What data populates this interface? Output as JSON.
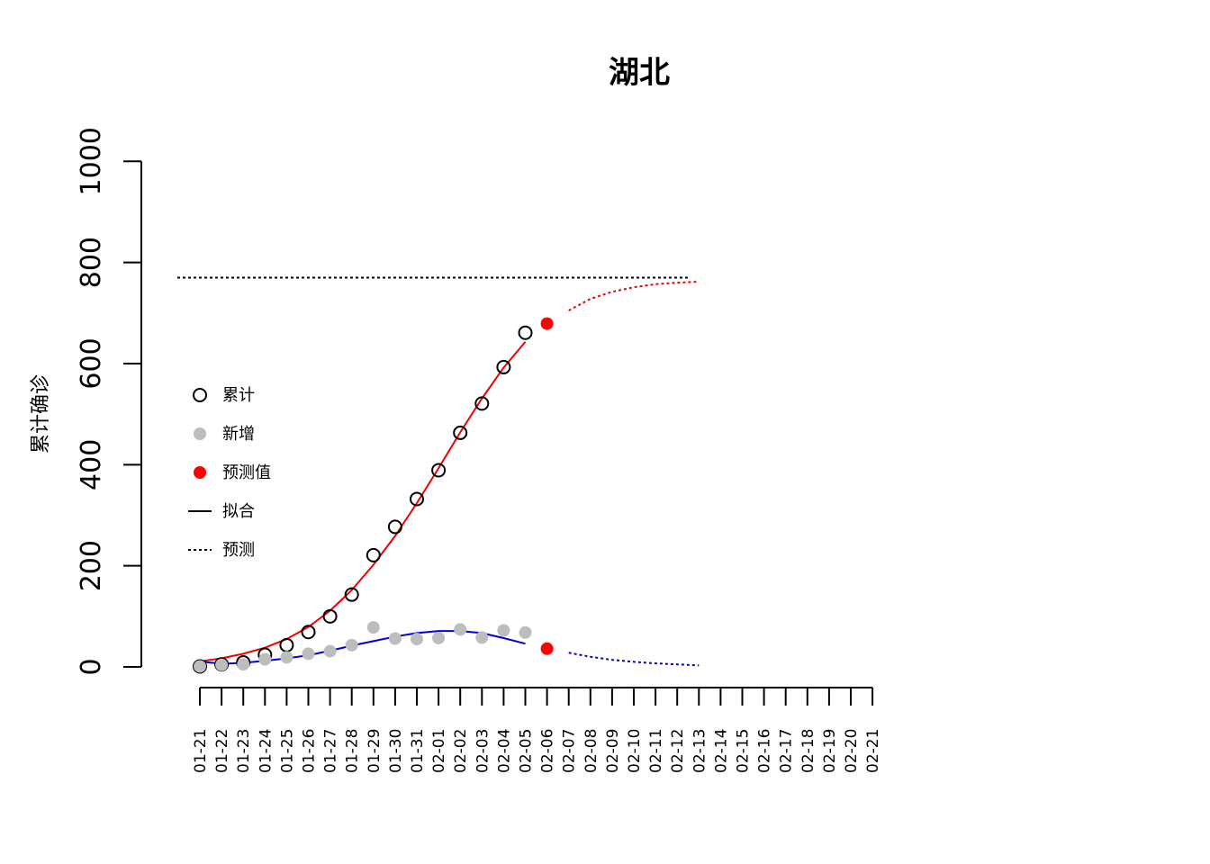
{
  "chart_data": {
    "type": "scatter",
    "title": "湖北",
    "ylabel": "累计确诊",
    "xlabel": "",
    "ylim": [
      0,
      1000
    ],
    "yticks": [
      0,
      200,
      400,
      600,
      800,
      1000
    ],
    "x_dates": [
      "01-21",
      "01-22",
      "01-23",
      "01-24",
      "01-25",
      "01-26",
      "01-27",
      "01-28",
      "01-29",
      "01-30",
      "01-31",
      "02-01",
      "02-02",
      "02-03",
      "02-04",
      "02-05",
      "02-06",
      "02-07",
      "02-08",
      "02-09",
      "02-10",
      "02-11",
      "02-12",
      "02-13",
      "02-14",
      "02-15",
      "02-16",
      "02-17",
      "02-18",
      "02-19",
      "02-20",
      "02-21"
    ],
    "grid": false,
    "legend_position": "left-center",
    "legend": [
      "累计",
      "新增",
      "预测值",
      "拟合",
      "预测"
    ],
    "colors": {
      "cumulative_fit": "#ee0000",
      "new_fit": "#0000dd",
      "predict_point": "#ff0000",
      "new_point": "#bdbdbd",
      "asymptote": "#000000"
    },
    "asymptote": 770,
    "series": [
      {
        "name": "累计",
        "marker": "open-circle",
        "color": "#000000",
        "x": [
          "01-21",
          "01-22",
          "01-23",
          "01-24",
          "01-25",
          "01-26",
          "01-27",
          "01-28",
          "01-29",
          "01-30",
          "01-31",
          "02-01",
          "02-02",
          "02-03",
          "02-04",
          "02-05"
        ],
        "values": [
          1,
          5,
          9,
          24,
          43,
          69,
          100,
          143,
          221,
          277,
          332,
          389,
          463,
          521,
          593,
          661
        ]
      },
      {
        "name": "新增",
        "marker": "filled-circle",
        "color": "#bdbdbd",
        "x": [
          "01-21",
          "01-22",
          "01-23",
          "01-24",
          "01-25",
          "01-26",
          "01-27",
          "01-28",
          "01-29",
          "01-30",
          "01-31",
          "02-01",
          "02-02",
          "02-03",
          "02-04",
          "02-05"
        ],
        "values": [
          1,
          4,
          5,
          15,
          19,
          26,
          31,
          43,
          78,
          56,
          55,
          57,
          74,
          58,
          72,
          68
        ]
      },
      {
        "name": "预测值",
        "marker": "filled-circle",
        "color": "#ff0000",
        "x": [
          "02-06",
          "02-06"
        ],
        "values": [
          679,
          36
        ]
      },
      {
        "name": "拟合",
        "line": "solid",
        "color": "#ee0000",
        "x": [
          "01-21",
          "01-22",
          "01-23",
          "01-24",
          "01-25",
          "01-26",
          "01-27",
          "01-28",
          "01-29",
          "01-30",
          "01-31",
          "02-01",
          "02-02",
          "02-03",
          "02-04",
          "02-05"
        ],
        "values": [
          11,
          17,
          26,
          38,
          55,
          79,
          111,
          152,
          202,
          259,
          324,
          393,
          464,
          531,
          592,
          643
        ]
      },
      {
        "name": "拟合",
        "line": "solid",
        "color": "#0000dd",
        "x": [
          "01-21",
          "01-22",
          "01-23",
          "01-24",
          "01-25",
          "01-26",
          "01-27",
          "01-28",
          "01-29",
          "01-30",
          "01-31",
          "02-01",
          "02-02",
          "02-03",
          "02-04",
          "02-05"
        ],
        "values": [
          11,
          6,
          8,
          12,
          17,
          23,
          32,
          42,
          51,
          60,
          67,
          71,
          71,
          67,
          57,
          46
        ]
      },
      {
        "name": "预测",
        "line": "dotted",
        "color": "#ee0000",
        "x": [
          "02-07",
          "02-08",
          "02-09",
          "02-10",
          "02-11",
          "02-12",
          "02-13"
        ],
        "values": [
          705,
          728,
          742,
          751,
          757,
          760,
          762
        ]
      },
      {
        "name": "预测",
        "line": "dotted",
        "color": "#0000dd",
        "x": [
          "02-07",
          "02-08",
          "02-09",
          "02-10",
          "02-11",
          "02-12",
          "02-13"
        ],
        "values": [
          28,
          20,
          14,
          10,
          7,
          5,
          3
        ]
      }
    ]
  }
}
